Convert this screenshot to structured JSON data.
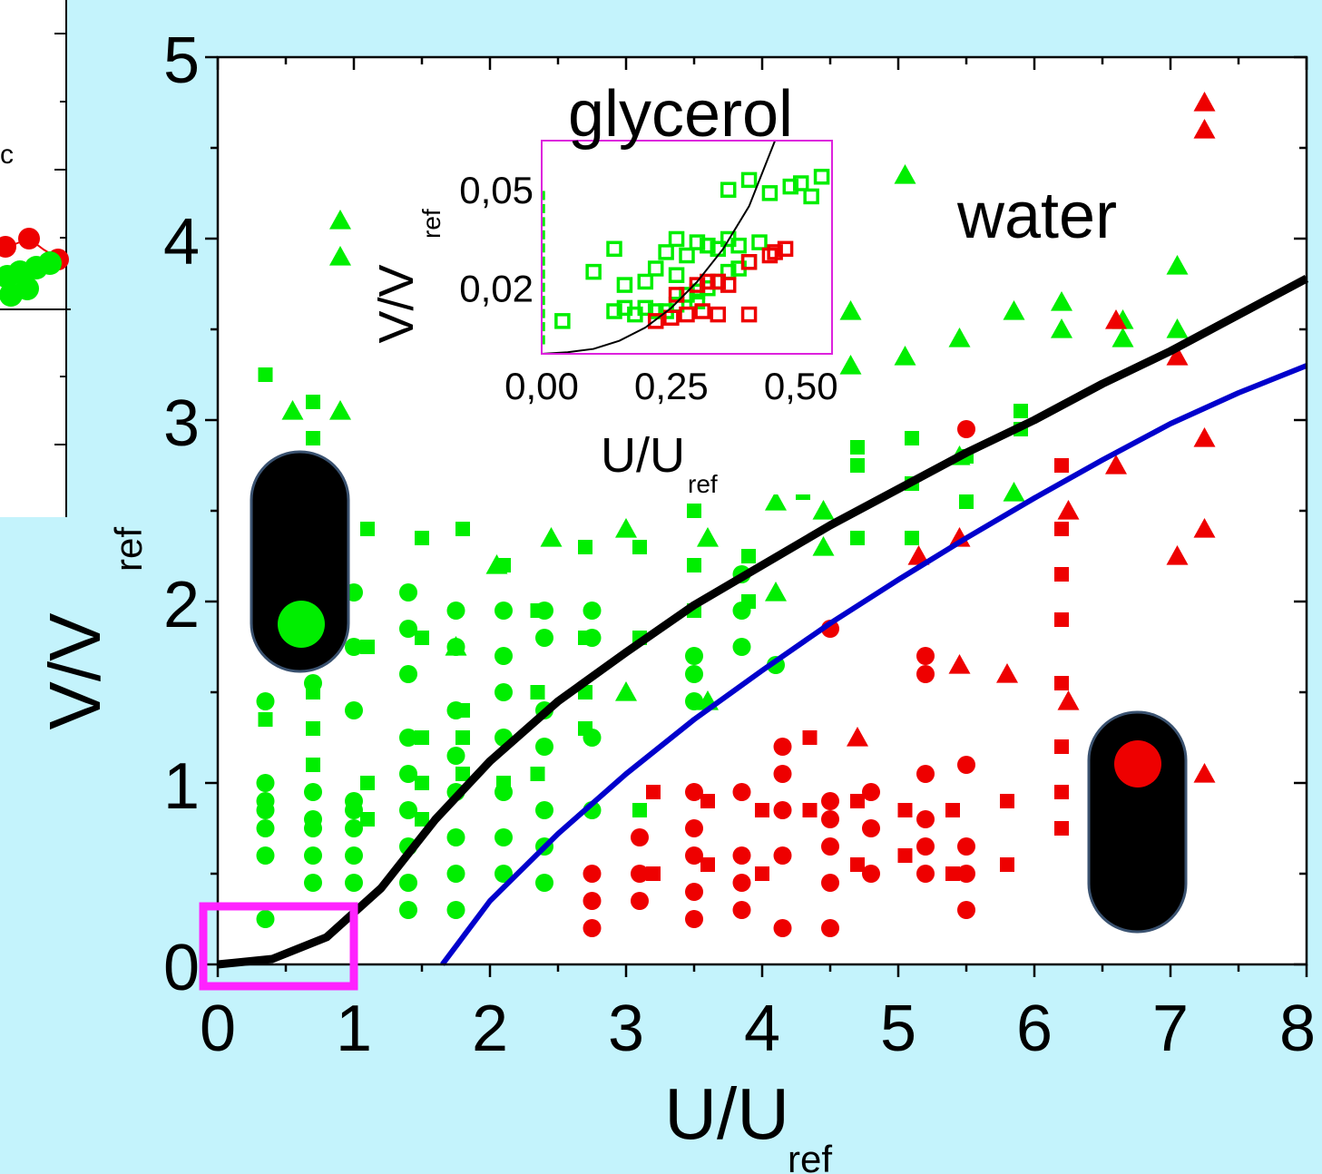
{
  "chart_data": [
    {
      "type": "scatter",
      "xlabel": "U/U",
      "xlabel_sub": "ref",
      "ylabel": "V/V",
      "ylabel_sub": "ref",
      "xlim": [
        0,
        8
      ],
      "ylim": [
        0,
        5
      ],
      "xticks": [
        "0",
        "1",
        "2",
        "3",
        "4",
        "5",
        "6",
        "7",
        "8"
      ],
      "yticks": [
        "0",
        "1",
        "2",
        "3",
        "4",
        "5"
      ],
      "annotations": {
        "water": "water",
        "glycerol": "glycerol"
      },
      "colors": {
        "green": "#00ee00",
        "red": "#ee0000",
        "black_curve": "#000000",
        "blue_curve": "#0000cc",
        "highlight_box": "#ff22ff"
      },
      "series": [
        {
          "marker": "circle",
          "color": "green",
          "x": [
            0.35,
            0.35,
            0.35,
            0.35,
            0.35,
            0.35,
            0.35,
            0.7,
            0.7,
            0.7,
            0.7,
            0.7,
            0.7,
            0.7,
            1.0,
            1.0,
            1.0,
            1.0,
            1.0,
            1.0,
            1.0,
            1.0,
            1.4,
            1.4,
            1.4,
            1.4,
            1.4,
            1.4,
            1.4,
            1.4,
            1.4,
            1.75,
            1.75,
            1.75,
            1.75,
            1.75,
            1.75,
            1.75,
            1.75,
            2.1,
            2.1,
            2.1,
            2.1,
            2.1,
            2.1,
            2.1,
            2.4,
            2.4,
            2.4,
            2.4,
            2.4,
            2.4,
            2.4,
            2.75,
            2.75,
            2.75,
            2.75,
            3.5,
            3.5,
            3.5,
            3.85,
            3.85,
            3.85,
            4.1
          ],
          "y": [
            0.25,
            0.6,
            0.75,
            0.85,
            1.0,
            1.45,
            0.9,
            0.45,
            0.6,
            0.75,
            0.95,
            1.55,
            1.75,
            0.8,
            0.45,
            0.6,
            0.75,
            0.85,
            0.9,
            1.4,
            2.05,
            1.75,
            0.3,
            0.45,
            0.65,
            0.85,
            1.05,
            1.25,
            1.6,
            1.85,
            2.05,
            0.3,
            0.5,
            0.7,
            0.95,
            1.15,
            1.4,
            1.75,
            1.95,
            0.5,
            0.7,
            0.95,
            1.25,
            1.5,
            1.7,
            1.95,
            0.45,
            0.65,
            0.85,
            1.2,
            1.4,
            1.8,
            1.95,
            0.85,
            1.25,
            1.8,
            1.95,
            1.45,
            1.6,
            1.7,
            1.95,
            2.15,
            1.75,
            1.65
          ]
        },
        {
          "marker": "square",
          "color": "green",
          "x": [
            0.35,
            0.35,
            0.35,
            0.7,
            0.7,
            0.7,
            0.7,
            0.7,
            1.1,
            1.1,
            1.1,
            1.1,
            1.5,
            1.5,
            1.5,
            1.5,
            1.5,
            1.8,
            1.8,
            1.8,
            1.8,
            2.1,
            2.1,
            2.35,
            2.35,
            2.35,
            2.7,
            2.7,
            2.7,
            2.7,
            3.1,
            3.1,
            3.1,
            3.5,
            3.5,
            3.5,
            3.9,
            3.9,
            4.3,
            4.3,
            4.7,
            4.7,
            4.7,
            5.1,
            5.1,
            5.1,
            5.5,
            5.5,
            5.9,
            5.9
          ],
          "y": [
            1.35,
            3.25,
            2.05,
            1.1,
            1.3,
            1.5,
            3.1,
            2.9,
            1.75,
            2.4,
            1.0,
            0.8,
            1.25,
            1.0,
            0.8,
            2.35,
            1.8,
            1.4,
            1.25,
            1.05,
            2.4,
            1.0,
            2.2,
            1.05,
            1.5,
            1.95,
            1.3,
            1.5,
            1.8,
            2.3,
            0.85,
            2.3,
            1.8,
            1.95,
            2.2,
            2.5,
            2.0,
            2.25,
            2.6,
            2.85,
            2.75,
            2.35,
            2.85,
            2.35,
            2.65,
            2.9,
            2.55,
            2.8,
            2.95,
            3.05
          ]
        },
        {
          "marker": "triangle",
          "color": "green",
          "x": [
            0.55,
            0.9,
            0.9,
            0.9,
            1.75,
            2.05,
            2.45,
            3.0,
            3.0,
            3.6,
            3.6,
            4.1,
            4.1,
            4.45,
            4.45,
            4.65,
            4.65,
            5.05,
            5.05,
            5.45,
            5.45,
            5.85,
            5.85,
            6.2,
            6.2,
            6.65,
            6.65,
            7.05,
            7.05
          ],
          "y": [
            3.05,
            3.05,
            3.9,
            4.1,
            1.75,
            2.2,
            2.35,
            1.5,
            2.4,
            1.45,
            2.35,
            2.05,
            2.55,
            2.5,
            2.3,
            3.3,
            3.6,
            3.35,
            4.35,
            3.45,
            2.8,
            3.6,
            2.6,
            3.65,
            3.5,
            3.55,
            3.45,
            3.5,
            3.85
          ]
        },
        {
          "marker": "circle",
          "color": "red",
          "x": [
            2.75,
            2.75,
            2.75,
            3.1,
            3.1,
            3.1,
            3.5,
            3.5,
            3.5,
            3.5,
            3.5,
            3.85,
            3.85,
            3.85,
            3.85,
            4.15,
            4.15,
            4.15,
            4.15,
            4.15,
            4.5,
            4.5,
            4.5,
            4.5,
            4.5,
            4.5,
            4.8,
            4.8,
            4.8,
            5.2,
            5.2,
            5.2,
            5.2,
            5.2,
            5.2,
            5.5,
            5.5,
            5.5,
            5.5,
            5.5
          ],
          "y": [
            0.2,
            0.35,
            0.5,
            0.35,
            0.5,
            0.7,
            0.25,
            0.4,
            0.6,
            0.75,
            0.95,
            0.3,
            0.45,
            0.6,
            0.95,
            0.2,
            0.6,
            0.85,
            1.05,
            1.2,
            0.2,
            0.45,
            0.65,
            0.8,
            0.9,
            1.85,
            0.5,
            0.75,
            0.95,
            0.5,
            0.65,
            0.8,
            1.05,
            1.6,
            1.7,
            0.3,
            0.5,
            0.65,
            1.1,
            2.95
          ]
        },
        {
          "marker": "square",
          "color": "red",
          "x": [
            3.2,
            3.2,
            3.6,
            3.6,
            4.0,
            4.0,
            4.35,
            4.35,
            4.7,
            4.7,
            5.05,
            5.05,
            5.4,
            5.4,
            5.8,
            5.8,
            6.2,
            6.2,
            6.2,
            6.2,
            6.2,
            6.2,
            6.2,
            6.2
          ],
          "y": [
            0.95,
            0.5,
            0.55,
            0.9,
            0.5,
            0.85,
            0.85,
            1.25,
            0.9,
            0.55,
            0.6,
            0.85,
            0.85,
            0.5,
            0.55,
            0.9,
            0.95,
            1.2,
            1.55,
            1.9,
            2.15,
            2.4,
            2.75,
            0.75
          ],
          "comment": ""
        },
        {
          "marker": "triangle",
          "color": "red",
          "x": [
            4.7,
            5.15,
            5.45,
            5.45,
            5.8,
            6.25,
            6.25,
            6.6,
            6.6,
            7.05,
            7.05,
            7.25,
            7.25,
            7.25,
            7.25,
            7.25
          ],
          "y": [
            1.25,
            2.25,
            2.35,
            1.65,
            1.6,
            1.45,
            2.5,
            2.75,
            3.55,
            3.35,
            2.25,
            1.05,
            2.4,
            2.9,
            4.6,
            4.75
          ]
        }
      ],
      "curves": [
        {
          "name": "",
          "color": "black_curve",
          "x": [
            0,
            0.4,
            0.8,
            1.2,
            1.6,
            2.0,
            2.5,
            3.0,
            3.5,
            4.0,
            4.5,
            5.0,
            5.5,
            6.0,
            6.5,
            7.0,
            7.5,
            8.0
          ],
          "y": [
            0,
            0.03,
            0.15,
            0.42,
            0.8,
            1.12,
            1.45,
            1.72,
            1.98,
            2.2,
            2.42,
            2.62,
            2.82,
            3.0,
            3.2,
            3.38,
            3.58,
            3.78
          ]
        },
        {
          "name": "",
          "color": "blue_curve",
          "x": [
            1.65,
            2.0,
            2.5,
            3.0,
            3.5,
            4.0,
            4.5,
            5.0,
            5.5,
            6.0,
            6.5,
            7.0,
            7.5,
            8.0
          ],
          "y": [
            0,
            0.35,
            0.72,
            1.05,
            1.35,
            1.62,
            1.88,
            2.12,
            2.35,
            2.57,
            2.78,
            2.98,
            3.15,
            3.3
          ]
        }
      ],
      "highlight_region": {
        "x": [
          0,
          1
        ],
        "y": [
          0,
          0.08
        ]
      }
    },
    {
      "type": "scatter",
      "title": "glycerol",
      "xlabel": "U/U",
      "xlabel_sub": "ref",
      "ylabel": "V/V",
      "ylabel_sub": "ref",
      "xlim": [
        0,
        0.56
      ],
      "ylim": [
        0,
        0.065
      ],
      "xticks": [
        "0,00",
        "0,25",
        "0,50"
      ],
      "xtick_values": [
        0,
        0.25,
        0.5
      ],
      "yticks": [
        "0,05",
        "0,02"
      ],
      "ytick_values": [
        0.05,
        0.02
      ],
      "series": [
        {
          "marker": "open-square",
          "color": "green",
          "x": [
            0.04,
            0.14,
            0.16,
            0.18,
            0.2,
            0.22,
            0.24,
            0.26,
            0.28,
            0.3,
            0.32,
            0.34,
            0.36,
            0.38,
            0.4,
            0.1,
            0.14,
            0.2,
            0.24,
            0.28,
            0.32,
            0.36,
            0.26,
            0.3,
            0.34,
            0.38,
            0.42,
            0.36,
            0.4,
            0.44,
            0.48,
            0.5,
            0.52,
            0.54,
            0.16,
            0.22,
            0.26,
            0.3
          ],
          "y": [
            0.01,
            0.013,
            0.014,
            0.012,
            0.014,
            0.013,
            0.013,
            0.015,
            0.018,
            0.016,
            0.02,
            0.022,
            0.025,
            0.026,
            0.028,
            0.025,
            0.032,
            0.022,
            0.031,
            0.03,
            0.033,
            0.035,
            0.035,
            0.034,
            0.032,
            0.033,
            0.034,
            0.05,
            0.053,
            0.049,
            0.051,
            0.052,
            0.048,
            0.054,
            0.021,
            0.026,
            0.024,
            0.019
          ]
        },
        {
          "marker": "open-square",
          "color": "red",
          "x": [
            0.22,
            0.25,
            0.28,
            0.31,
            0.34,
            0.4,
            0.26,
            0.3,
            0.32,
            0.34,
            0.36,
            0.4,
            0.44,
            0.45,
            0.47
          ],
          "y": [
            0.01,
            0.011,
            0.012,
            0.013,
            0.012,
            0.012,
            0.018,
            0.021,
            0.022,
            0.022,
            0.021,
            0.028,
            0.03,
            0.031,
            0.032
          ]
        }
      ],
      "curves": [
        {
          "name": "",
          "color": "black_curve",
          "x": [
            0,
            0.05,
            0.1,
            0.15,
            0.2,
            0.25,
            0.3,
            0.35,
            0.4,
            0.45
          ],
          "y": [
            0,
            0.0005,
            0.0015,
            0.004,
            0.008,
            0.014,
            0.022,
            0.032,
            0.045,
            0.065
          ]
        }
      ]
    },
    {
      "type": "scatter",
      "partial": true,
      "annotation": "c"
    }
  ],
  "indicators": {
    "green_light": "green light indicator",
    "red_light": "red light indicator"
  }
}
